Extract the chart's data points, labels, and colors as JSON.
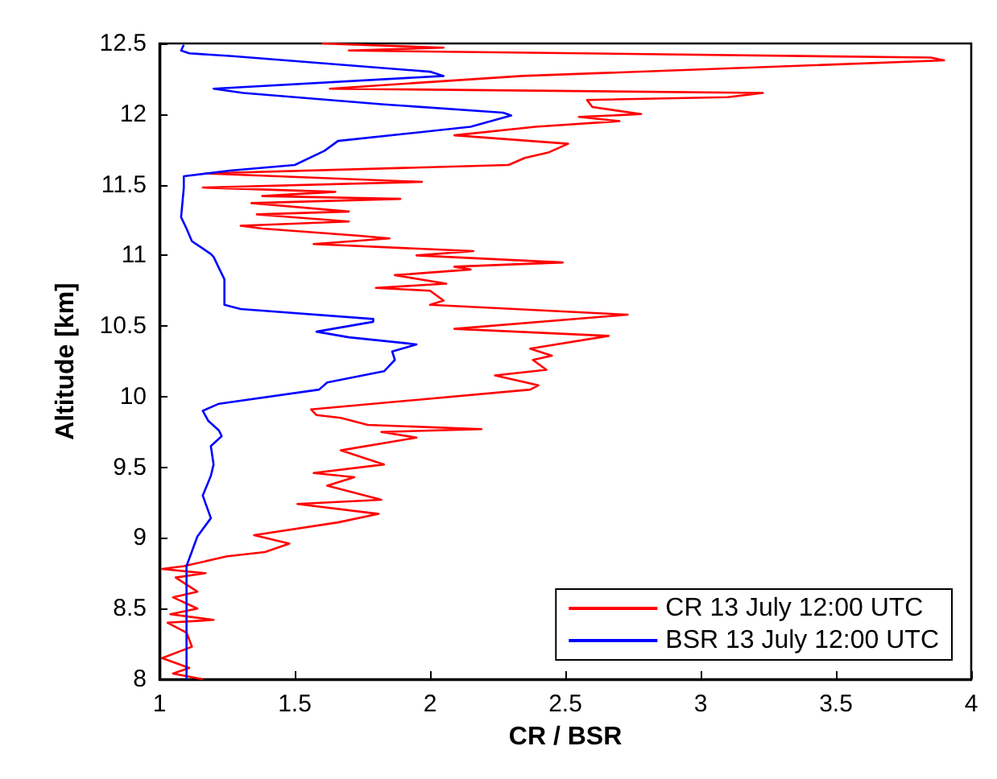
{
  "chart_data": {
    "type": "line",
    "xlabel": "CR / BSR",
    "ylabel": "Altitude [km]",
    "xlim": [
      1,
      4
    ],
    "xticks": [
      1,
      1.5,
      2,
      2.5,
      3,
      3.5,
      4
    ],
    "ylim": [
      8,
      12.5
    ],
    "yticks": [
      8,
      8.5,
      9,
      9.5,
      10,
      10.5,
      11,
      11.5,
      12,
      12.5
    ],
    "grid": false,
    "legend": "bottom right",
    "marker": "none",
    "line_style": "solid",
    "series": [
      {
        "name": "CR 13 July 12:00 UTC",
        "color": "#ff0000",
        "x": [
          1.6,
          2.05,
          1.7,
          3.85,
          3.9,
          2.34,
          1.63,
          3.23,
          3.1,
          2.58,
          2.6,
          2.78,
          2.55,
          2.7,
          2.39,
          2.09,
          2.51,
          2.44,
          2.35,
          2.29,
          1.17,
          1.97,
          1.16,
          1.65,
          1.38,
          1.89,
          1.34,
          1.7,
          1.36,
          1.7,
          1.3,
          1.38,
          1.73,
          1.85,
          1.57,
          2.16,
          1.95,
          2.49,
          2.09,
          2.15,
          1.87,
          2.06,
          1.8,
          2.0,
          2.05,
          2.0,
          2.73,
          2.09,
          2.66,
          2.37,
          2.45,
          2.38,
          2.43,
          2.24,
          2.4,
          2.37,
          1.56,
          1.58,
          1.67,
          1.77,
          2.19,
          1.82,
          1.95,
          1.67,
          1.83,
          1.57,
          1.72,
          1.62,
          1.82,
          1.51,
          1.81,
          1.66,
          1.35,
          1.48,
          1.39,
          1.25,
          1.09,
          1.01,
          1.17,
          1.06,
          1.14,
          1.05,
          1.14,
          1.04,
          1.2,
          1.03,
          1.1,
          1.12,
          1.01,
          1.11,
          1.05,
          1.16
        ],
        "values": [
          12.5,
          12.47,
          12.45,
          12.4,
          12.38,
          12.27,
          12.18,
          12.15,
          12.12,
          12.1,
          12.05,
          12.0,
          11.98,
          11.95,
          11.91,
          11.85,
          11.79,
          11.73,
          11.69,
          11.64,
          11.58,
          11.52,
          11.48,
          11.45,
          11.42,
          11.4,
          11.37,
          11.31,
          11.29,
          11.24,
          11.21,
          11.19,
          11.14,
          11.12,
          11.08,
          11.03,
          11.0,
          10.95,
          10.92,
          10.9,
          10.86,
          10.8,
          10.77,
          10.75,
          10.68,
          10.65,
          10.58,
          10.48,
          10.43,
          10.34,
          10.29,
          10.26,
          10.19,
          10.15,
          10.08,
          10.05,
          9.91,
          9.87,
          9.85,
          9.8,
          9.77,
          9.75,
          9.71,
          9.62,
          9.52,
          9.46,
          9.43,
          9.37,
          9.27,
          9.24,
          9.17,
          9.11,
          9.02,
          8.96,
          8.9,
          8.87,
          8.8,
          8.78,
          8.75,
          8.72,
          8.62,
          8.58,
          8.5,
          8.46,
          8.42,
          8.4,
          8.33,
          8.23,
          8.15,
          8.08,
          8.04,
          8.0
        ]
      },
      {
        "name": "BSR 13 July 12:00 UTC",
        "color": "#0000ff",
        "x": [
          1.09,
          1.08,
          1.11,
          1.27,
          2.0,
          2.05,
          1.2,
          1.31,
          1.82,
          2.27,
          2.3,
          2.15,
          1.66,
          1.61,
          1.5,
          1.26,
          1.09,
          1.09,
          1.08,
          1.1,
          1.12,
          1.19,
          1.2,
          1.24,
          1.24,
          1.3,
          1.79,
          1.79,
          1.58,
          1.7,
          1.95,
          1.86,
          1.87,
          1.83,
          1.62,
          1.59,
          1.22,
          1.16,
          1.18,
          1.22,
          1.23,
          1.19,
          1.2,
          1.19,
          1.16,
          1.19,
          1.14,
          1.1,
          1.1,
          1.1
        ],
        "values": [
          12.49,
          12.45,
          12.43,
          12.41,
          12.3,
          12.27,
          12.18,
          12.15,
          12.07,
          12.01,
          11.99,
          11.91,
          11.81,
          11.74,
          11.64,
          11.6,
          11.56,
          11.48,
          11.27,
          11.19,
          11.1,
          11.01,
          10.99,
          10.83,
          10.65,
          10.62,
          10.55,
          10.53,
          10.46,
          10.42,
          10.37,
          10.32,
          10.26,
          10.18,
          10.1,
          10.05,
          9.95,
          9.9,
          9.83,
          9.76,
          9.72,
          9.65,
          9.52,
          9.44,
          9.3,
          9.14,
          9.01,
          8.8,
          8.44,
          8.0
        ]
      }
    ]
  }
}
